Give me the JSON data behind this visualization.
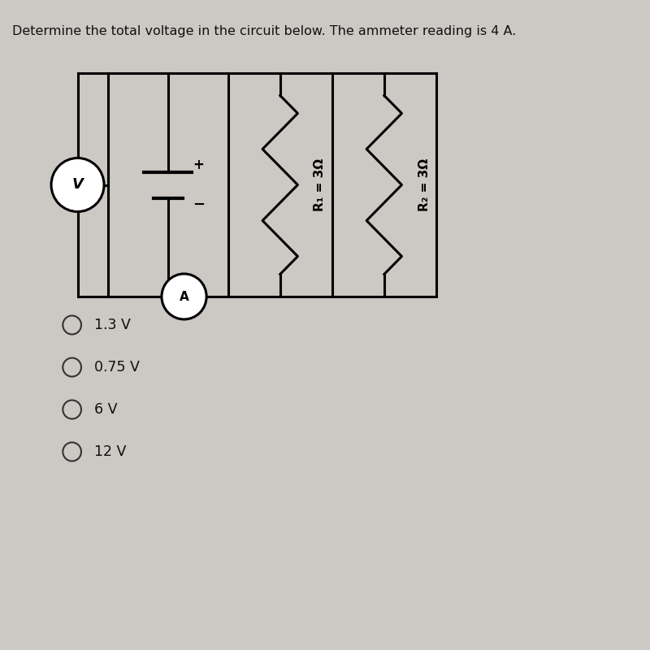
{
  "title": "Determine the total voltage in the circuit below. The ammeter reading is 4 A.",
  "title_fontsize": 11.5,
  "bg_color": "#ccc8c3",
  "choices": [
    "1.3 V",
    "0.75 V",
    "6 V",
    "12 V"
  ],
  "r1_label": "R₁ = 3Ω",
  "r2_label": "R₂ = 3Ω",
  "line_color": "#000000",
  "text_color": "#111111",
  "choice_color": "#333333"
}
